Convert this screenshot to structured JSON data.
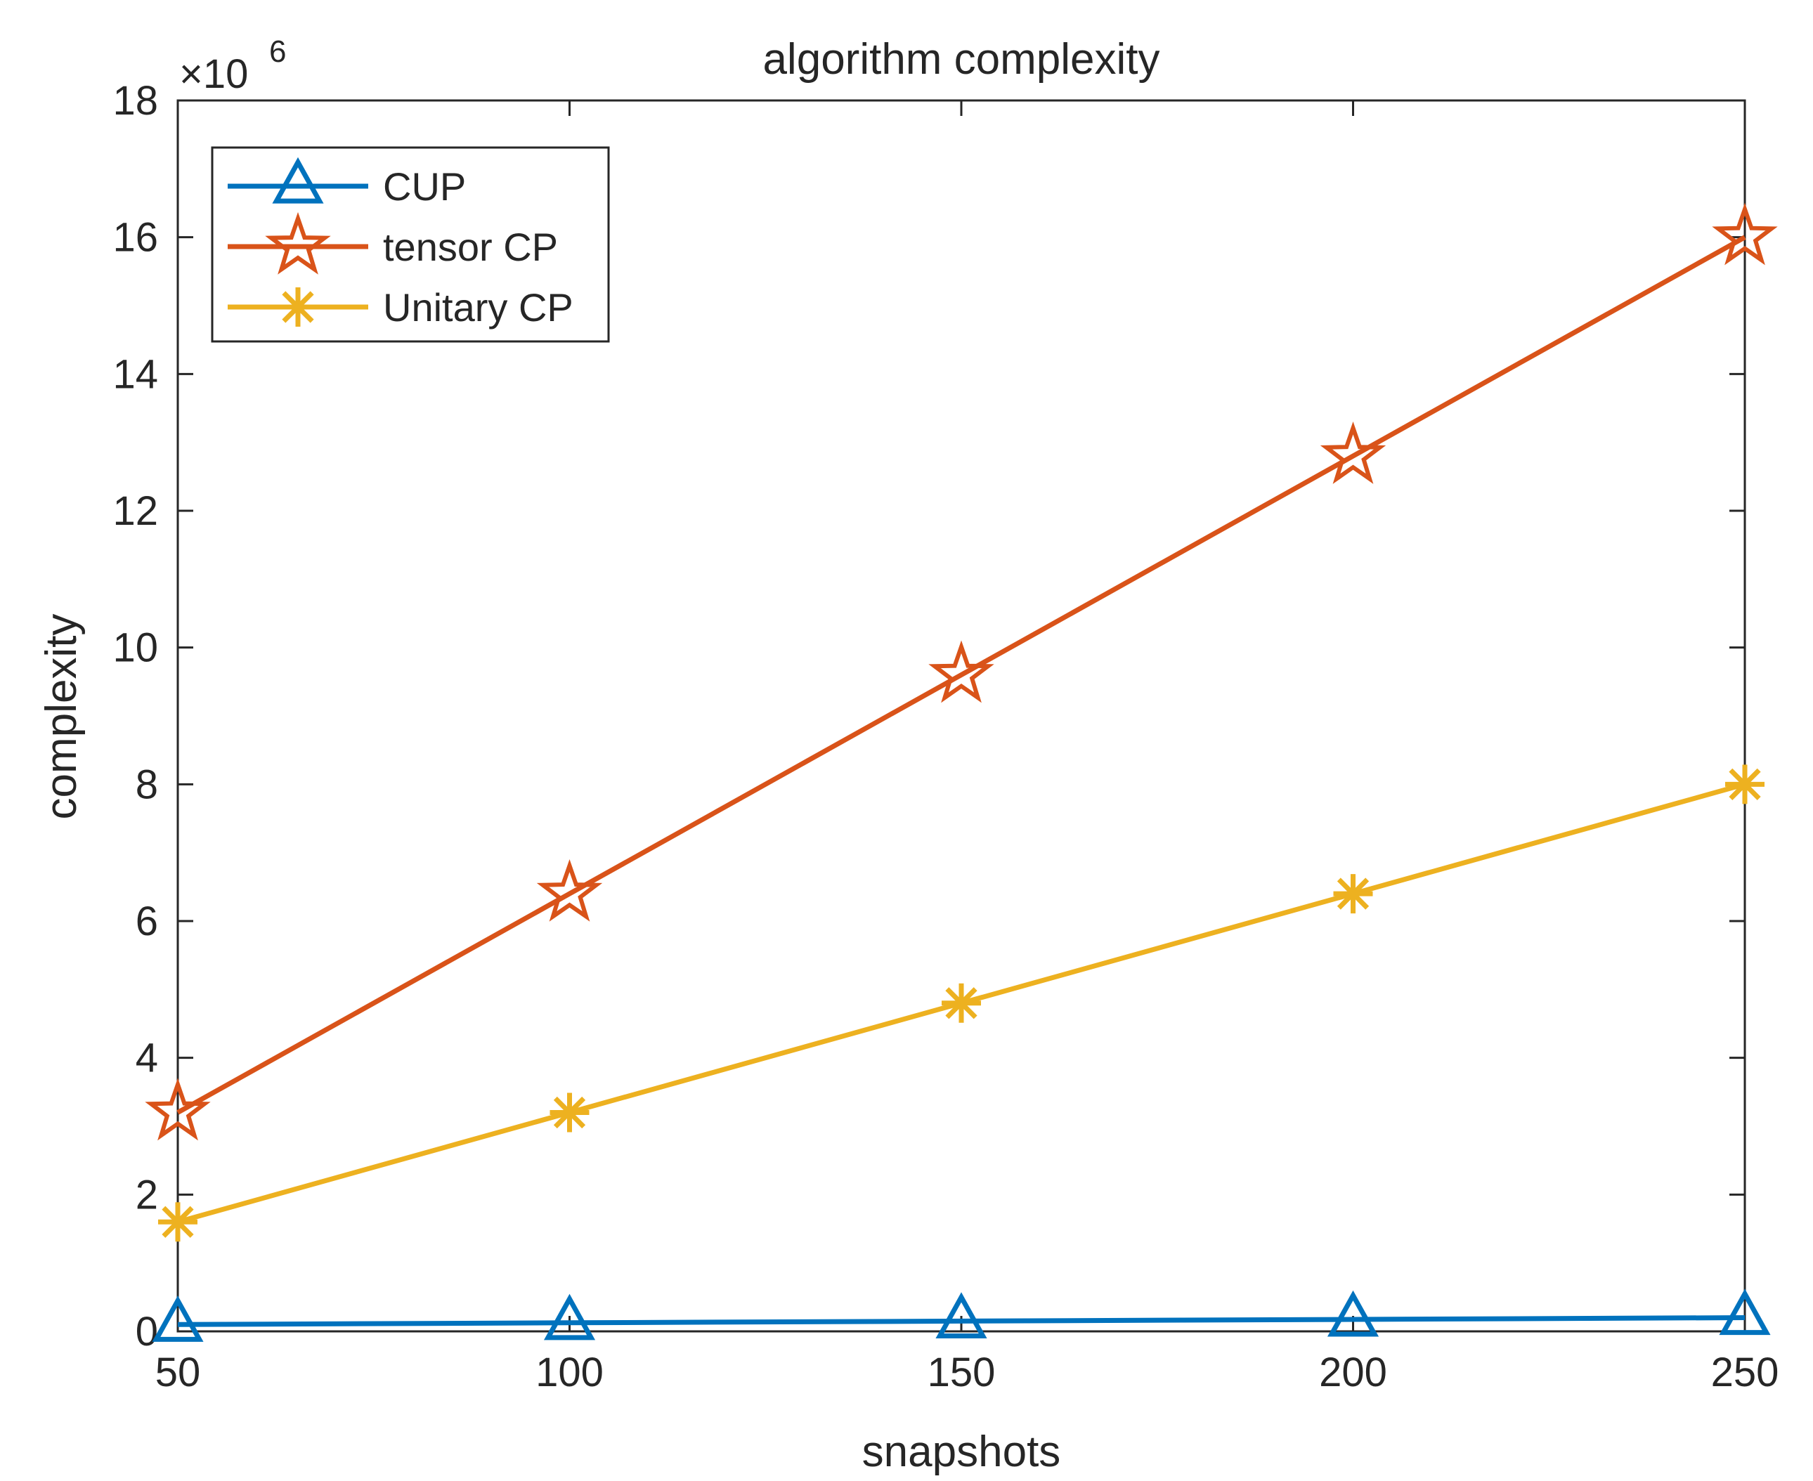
{
  "chart_data": {
    "type": "line",
    "title": "algorithm complexity",
    "xlabel": "snapshots",
    "ylabel": "complexity",
    "exponent_label": {
      "base": "×10",
      "power": "6"
    },
    "x": [
      50,
      100,
      150,
      200,
      250
    ],
    "xlim": [
      50,
      250
    ],
    "ylim": [
      0,
      18
    ],
    "x_ticks": [
      50,
      100,
      150,
      200,
      250
    ],
    "y_ticks": [
      0,
      2,
      4,
      6,
      8,
      10,
      12,
      14,
      16,
      18
    ],
    "y_scale": 1000000,
    "grid": false,
    "legend_position": "top-left",
    "series": [
      {
        "name": "CUP",
        "marker": "triangle",
        "color": "#0072BD",
        "values": [
          0.1,
          0.125,
          0.15,
          0.175,
          0.2
        ]
      },
      {
        "name": "tensor CP",
        "marker": "star",
        "color": "#D95319",
        "values": [
          3.2,
          6.4,
          9.6,
          12.8,
          16.0
        ]
      },
      {
        "name": "Unitary CP",
        "marker": "asterisk",
        "color": "#EDB120",
        "values": [
          1.6,
          3.2,
          4.8,
          6.4,
          8.0
        ]
      }
    ]
  }
}
